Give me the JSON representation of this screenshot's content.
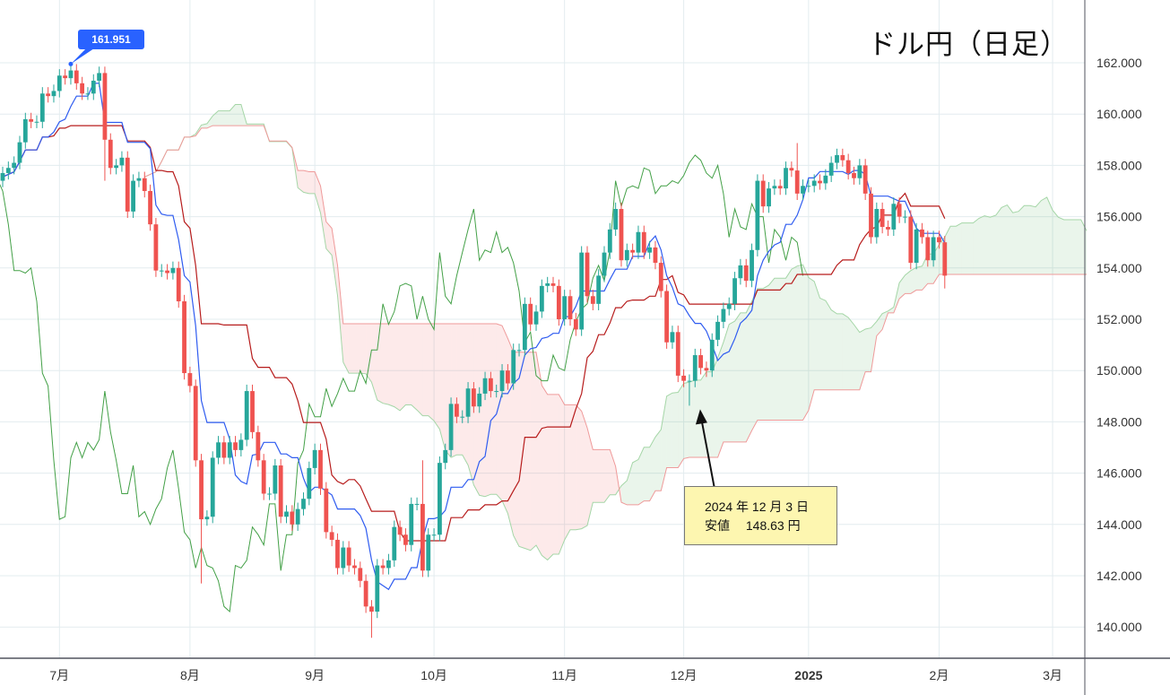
{
  "chart_data": {
    "type": "candlestick",
    "title": "ドル円（日足）",
    "indicator": "Ichimoku Kinko Hyo",
    "xlabel": "",
    "ylabel": "",
    "ylim": [
      139.0,
      164.6
    ],
    "y_ticks": [
      "140.000",
      "142.000",
      "144.000",
      "146.000",
      "148.000",
      "150.000",
      "152.000",
      "154.000",
      "156.000",
      "158.000",
      "160.000",
      "162.000"
    ],
    "x_ticks": [
      {
        "label": "7月",
        "candle": 10
      },
      {
        "label": "8月",
        "candle": 33
      },
      {
        "label": "9月",
        "candle": 55
      },
      {
        "label": "10月",
        "candle": 76
      },
      {
        "label": "11月",
        "candle": 99
      },
      {
        "label": "12月",
        "candle": 120
      },
      {
        "label": "2025",
        "candle": 142
      },
      {
        "label": "2月",
        "candle": 165
      },
      {
        "label": "3月",
        "candle": 185
      }
    ],
    "first_open": 157.4,
    "closes": [
      157.7,
      157.9,
      158.1,
      158.9,
      159.8,
      159.7,
      159.7,
      160.8,
      160.7,
      160.9,
      161.5,
      161.4,
      161.7,
      161.2,
      160.8,
      160.8,
      161.3,
      161.6,
      159.0,
      157.9,
      158.0,
      158.3,
      156.2,
      157.4,
      157.5,
      157.0,
      155.7,
      153.9,
      153.9,
      153.8,
      154.0,
      152.7,
      149.9,
      149.4,
      146.5,
      144.2,
      144.3,
      146.6,
      147.2,
      146.6,
      147.2,
      146.9,
      147.3,
      149.2,
      147.6,
      146.5,
      145.2,
      145.2,
      146.3,
      144.3,
      144.5,
      144.0,
      144.6,
      145.0,
      146.2,
      146.9,
      145.4,
      143.7,
      143.4,
      142.3,
      143.1,
      142.4,
      142.3,
      141.8,
      140.8,
      140.6,
      142.4,
      142.3,
      142.6,
      143.9,
      143.6,
      143.2,
      144.8,
      144.8,
      142.2,
      143.6,
      143.6,
      146.4,
      146.9,
      148.7,
      148.2,
      148.2,
      149.3,
      148.6,
      149.1,
      149.7,
      149.2,
      149.2,
      150.0,
      149.5,
      150.8,
      150.8,
      152.6,
      151.8,
      152.3,
      153.3,
      153.4,
      153.3,
      152.0,
      152.9,
      152.0,
      151.6,
      154.6,
      152.9,
      152.6,
      153.7,
      154.6,
      155.5,
      156.3,
      154.3,
      154.7,
      154.6,
      155.4,
      154.6,
      154.8,
      154.2,
      153.1,
      151.1,
      151.5,
      149.8,
      149.6,
      149.6,
      150.6,
      150.1,
      150.0,
      151.2,
      151.9,
      152.4,
      152.6,
      153.6,
      154.1,
      153.5,
      154.7,
      157.4,
      156.4,
      157.1,
      157.2,
      157.1,
      157.9,
      157.8,
      156.9,
      157.2,
      157.2,
      157.4,
      157.3,
      157.6,
      158.1,
      158.4,
      158.2,
      157.7,
      157.5,
      158.0,
      156.9,
      155.2,
      156.3,
      155.6,
      155.5,
      156.5,
      156.0,
      156.0,
      154.2,
      155.5,
      155.2,
      154.3,
      155.2,
      155.0,
      153.7
    ],
    "wick_extremes": [
      {
        "candle": 12,
        "high": 161.951
      },
      {
        "candle": 18,
        "low": 157.4
      },
      {
        "candle": 35,
        "low": 141.7
      },
      {
        "candle": 65,
        "low": 139.58
      },
      {
        "candle": 74,
        "high": 146.5
      },
      {
        "candle": 121,
        "low": 148.63
      },
      {
        "candle": 140,
        "high": 158.87
      },
      {
        "candle": 166,
        "low": 153.2
      }
    ],
    "series_colors": {
      "up": "#26a69a",
      "down": "#ef5350",
      "tenkan": "#2f5cf0",
      "kijun": "#b71c1c",
      "chikou": "#43a047",
      "span_a": "#a5d6a7",
      "span_b": "#ef9a9a"
    },
    "high_label": "161.951",
    "annotation": {
      "line1": "2024 年 12 月 3 日",
      "line2": "安値　 148.63 円",
      "candle": 121,
      "price": 148.63
    }
  }
}
